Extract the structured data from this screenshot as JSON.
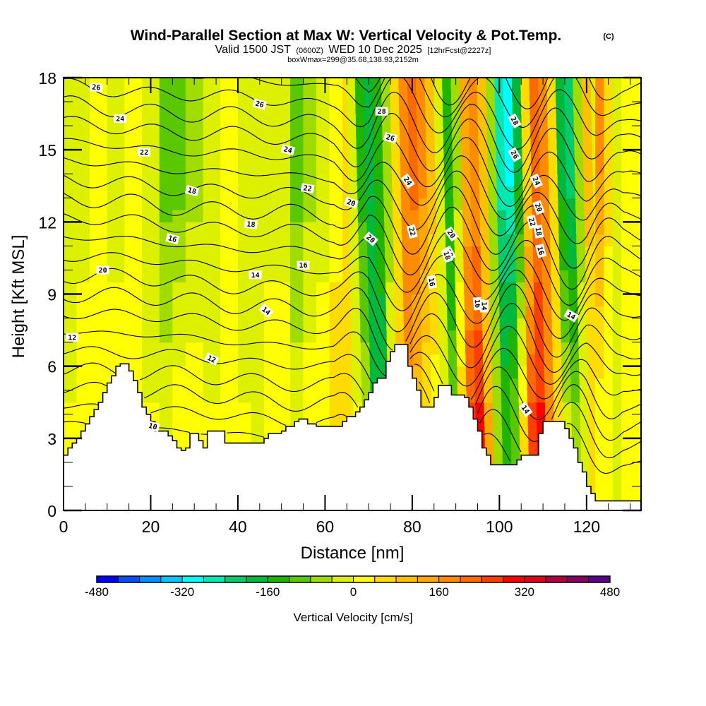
{
  "header": {
    "title": "Wind-Parallel Section at Max W: Vertical Velocity & Pot.Temp.",
    "copyright": "(C)",
    "valid_prefix": "Valid 1500 JST",
    "valid_utc": "(0600Z)",
    "valid_date": "WED 10 Dec 2025",
    "forecast": "[12hrFcst@2227z]",
    "boxwmax": "boxWmax=299@35.68,138.93,2152m"
  },
  "chart_data": {
    "type": "heatmap",
    "title": "Wind-Parallel Section at Max W: Vertical Velocity & Pot.Temp.",
    "xlabel": "Distance [nm]",
    "ylabel": "Height [Kft MSL]",
    "xlim": [
      0,
      132.5
    ],
    "ylim": [
      0,
      18
    ],
    "x_ticks": [
      "0",
      "20",
      "40",
      "60",
      "80",
      "100",
      "120"
    ],
    "x_tick_values": [
      0,
      20,
      40,
      60,
      80,
      100,
      120
    ],
    "y_ticks": [
      "0",
      "3",
      "6",
      "9",
      "12",
      "15",
      "18"
    ],
    "y_tick_values": [
      0,
      3,
      6,
      9,
      12,
      15,
      18
    ],
    "colorbar": {
      "label": "Vertical Velocity [cm/s]",
      "range": [
        -480,
        480
      ],
      "tick_labels": [
        "-480",
        "-320",
        "-160",
        "0",
        "160",
        "320",
        "480"
      ],
      "tick_values": [
        -480,
        -320,
        -160,
        0,
        160,
        320,
        480
      ],
      "colors": [
        "#0000ff",
        "#0050ff",
        "#0090ff",
        "#00c8ff",
        "#00ffff",
        "#00e8b4",
        "#00cc6e",
        "#00b83c",
        "#1eb400",
        "#5ac800",
        "#a0dc00",
        "#dcf000",
        "#ffff00",
        "#ffdc00",
        "#ffc000",
        "#ffa800",
        "#ff8c00",
        "#ff6a00",
        "#ff4000",
        "#ff0000",
        "#e00020",
        "#b40040",
        "#880060",
        "#5a0088"
      ]
    },
    "terrain_kft": {
      "distance_nm": [
        0,
        1,
        2,
        3,
        4,
        5,
        6,
        7,
        8,
        9,
        10,
        11,
        12,
        13,
        14,
        15,
        16,
        17,
        18,
        19,
        20,
        21,
        22,
        23,
        24,
        25,
        26,
        27,
        28,
        29,
        30,
        31,
        32,
        33,
        34,
        35,
        36,
        37,
        38,
        39,
        40,
        41,
        42,
        43,
        44,
        45,
        46,
        47,
        48,
        49,
        50,
        51,
        52,
        53,
        54,
        55,
        56,
        57,
        58,
        59,
        60,
        61,
        62,
        63,
        64,
        65,
        66,
        67,
        68,
        69,
        70,
        71,
        72,
        73,
        74,
        75,
        76,
        77,
        78,
        79,
        80,
        81,
        82,
        83,
        84,
        85,
        86,
        87,
        88,
        89,
        90,
        91,
        92,
        93,
        94,
        95,
        96,
        97,
        98,
        99,
        100,
        101,
        102,
        103,
        104,
        105,
        106,
        107,
        108,
        109,
        110,
        111,
        112,
        113,
        114,
        115,
        116,
        117,
        118,
        119,
        120,
        121,
        122,
        123,
        124,
        125,
        126,
        127,
        128,
        129,
        130,
        131,
        132.5
      ],
      "height_kft": [
        2.3,
        2.6,
        2.8,
        3.0,
        3.3,
        3.6,
        3.9,
        4.2,
        4.5,
        4.9,
        5.3,
        5.6,
        6.0,
        6.1,
        6.1,
        5.8,
        5.4,
        4.9,
        4.3,
        4.0,
        3.7,
        3.3,
        3.3,
        3.3,
        3.1,
        2.9,
        2.6,
        2.5,
        2.6,
        3.2,
        3.2,
        2.9,
        2.6,
        3.3,
        3.3,
        3.3,
        3.3,
        2.8,
        2.8,
        2.8,
        2.8,
        2.8,
        2.8,
        2.8,
        2.8,
        2.8,
        3.0,
        3.2,
        3.2,
        3.2,
        3.3,
        3.5,
        3.5,
        3.7,
        3.8,
        3.8,
        3.6,
        3.6,
        3.5,
        3.5,
        3.5,
        3.5,
        3.5,
        3.5,
        3.7,
        3.9,
        3.9,
        4.1,
        4.3,
        4.6,
        4.9,
        5.3,
        5.5,
        5.5,
        6.2,
        6.6,
        6.9,
        6.9,
        6.9,
        6.0,
        5.5,
        5.0,
        4.3,
        4.3,
        4.3,
        4.7,
        5.2,
        5.2,
        5.2,
        4.8,
        4.8,
        4.8,
        4.7,
        4.3,
        3.8,
        3.3,
        2.6,
        2.3,
        1.9,
        1.9,
        1.9,
        1.9,
        1.9,
        1.9,
        2.1,
        2.3,
        2.3,
        2.3,
        2.3,
        3.2,
        3.7,
        3.7,
        3.7,
        3.7,
        3.7,
        3.4,
        3.0,
        2.6,
        2.0,
        1.6,
        1.0,
        0.7,
        0.4,
        0.4,
        0.4,
        0.4,
        0.4,
        0.4,
        0.4,
        0.4,
        0.4,
        0.4,
        0.4
      ]
    },
    "vertical_velocity_bands": {
      "distance_nm": [
        0,
        3,
        6,
        10,
        14,
        18,
        22,
        25,
        28,
        32,
        36,
        40,
        43,
        46,
        49,
        52,
        55,
        58,
        61,
        64,
        66,
        68,
        70,
        72,
        74,
        76,
        78,
        80,
        82,
        84,
        86,
        88,
        90,
        92,
        94,
        96,
        98,
        100,
        102,
        104,
        106,
        108,
        110,
        112,
        114,
        116,
        118,
        120,
        122,
        124,
        126,
        128,
        130,
        132.5
      ],
      "value_cms_upper": [
        -40,
        -20,
        0,
        -20,
        0,
        -20,
        -100,
        -100,
        -60,
        -20,
        0,
        -20,
        -20,
        -20,
        -20,
        -100,
        -60,
        -20,
        20,
        40,
        -20,
        -140,
        -180,
        -140,
        -60,
        40,
        160,
        220,
        180,
        100,
        -20,
        -160,
        -60,
        120,
        160,
        100,
        -60,
        -260,
        -300,
        -180,
        60,
        200,
        160,
        40,
        -180,
        -220,
        -60,
        100,
        160,
        60,
        -40,
        20,
        20
      ],
      "value_cms_lower": [
        0,
        20,
        0,
        20,
        20,
        0,
        -20,
        20,
        20,
        0,
        20,
        0,
        -40,
        20,
        20,
        -20,
        20,
        20,
        60,
        40,
        0,
        -60,
        -160,
        -180,
        -20,
        100,
        200,
        100,
        40,
        20,
        -40,
        -100,
        60,
        240,
        280,
        120,
        -80,
        -140,
        -100,
        40,
        240,
        280,
        180,
        60,
        -40,
        -80,
        -20,
        40,
        20,
        0,
        -20,
        20,
        20
      ]
    },
    "potential_temperature": {
      "units": "C",
      "contour_interval": 1,
      "contour_levels_low_to_high": [
        9,
        10,
        11,
        12,
        13,
        14,
        15,
        16,
        17,
        18,
        19,
        20,
        21,
        22,
        23,
        24,
        25,
        26,
        27,
        28,
        29
      ],
      "labels": [
        {
          "text": "26",
          "value": 26
        },
        {
          "text": "24",
          "value": 24
        },
        {
          "text": "22",
          "value": 22
        },
        {
          "text": "20",
          "value": 20
        },
        {
          "text": "18",
          "value": 18
        },
        {
          "text": "16",
          "value": 16
        },
        {
          "text": "14",
          "value": 14
        },
        {
          "text": "12",
          "value": 12
        },
        {
          "text": "10",
          "value": 10
        },
        {
          "text": "26",
          "value": 26
        },
        {
          "text": "24",
          "value": 24
        },
        {
          "text": "22",
          "value": 22
        },
        {
          "text": "20",
          "value": 20
        },
        {
          "text": "18",
          "value": 18
        },
        {
          "text": "16",
          "value": 16
        },
        {
          "text": "14",
          "value": 14
        },
        {
          "text": "12",
          "value": 12
        },
        {
          "text": "28",
          "value": 28
        },
        {
          "text": "26",
          "value": 26
        },
        {
          "text": "24",
          "value": 24
        },
        {
          "text": "22",
          "value": 22
        },
        {
          "text": "20",
          "value": 20
        },
        {
          "text": "18",
          "value": 18
        },
        {
          "text": "16",
          "value": 16
        },
        {
          "text": "20",
          "value": 20
        },
        {
          "text": "18",
          "value": 18
        },
        {
          "text": "16",
          "value": 16
        },
        {
          "text": "14",
          "value": 14
        },
        {
          "text": "28",
          "value": 28
        },
        {
          "text": "26",
          "value": 26
        },
        {
          "text": "24",
          "value": 24
        },
        {
          "text": "22",
          "value": 22
        },
        {
          "text": "20",
          "value": 20
        },
        {
          "text": "18",
          "value": 18
        },
        {
          "text": "16",
          "value": 16
        },
        {
          "text": "14",
          "value": 14
        },
        {
          "text": "14",
          "value": 14
        }
      ]
    }
  }
}
